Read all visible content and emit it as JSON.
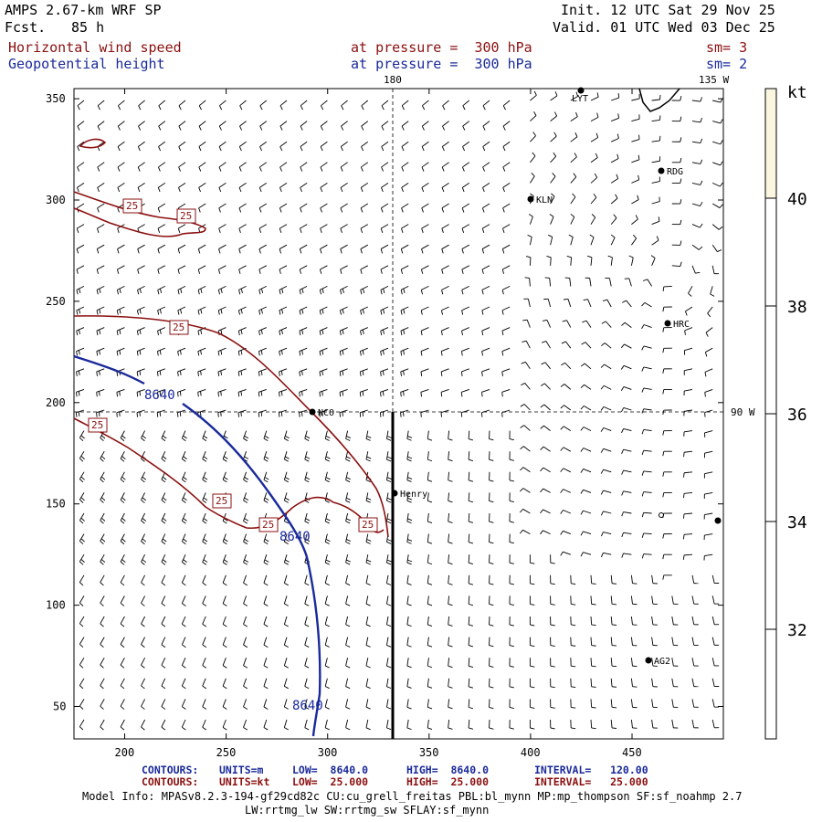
{
  "header": {
    "model": "AMPS 2.67-km WRF SP",
    "fcst_label": "Fcst.",
    "fcst_value": "85 h",
    "init": "Init. 12 UTC Sat 29 Nov 25",
    "valid": "Valid. 01 UTC Wed 03 Dec 25",
    "field1_name": "Horizontal wind speed",
    "field1_level": "at pressure =  300 hPa",
    "field1_sm": "sm= 3",
    "field2_name": "Geopotential height",
    "field2_level": "at pressure =  300 hPa",
    "field2_sm": "sm= 2"
  },
  "map": {
    "x_ticks": [
      "200",
      "250",
      "300",
      "350",
      "400",
      "450"
    ],
    "y_ticks": [
      "350",
      "300",
      "250",
      "200",
      "150",
      "100",
      "50"
    ],
    "meridian_top_labels": [
      "180",
      "135 W"
    ],
    "parallel_right_label": "90 W",
    "stations": [
      {
        "name": "LYT"
      },
      {
        "name": "RDG"
      },
      {
        "name": "KLN"
      },
      {
        "name": "HRC"
      },
      {
        "name": "NCO"
      },
      {
        "name": "Henry"
      },
      {
        "name": "AG2"
      }
    ],
    "contour_labels_height": [
      "8640",
      "8640",
      "8640"
    ],
    "contour_labels_wind": [
      "25",
      "25",
      "25",
      "25",
      "25",
      "25",
      "25"
    ],
    "colors": {
      "height_contour": "#1a2a9a",
      "wind_contour": "#8b1010",
      "barb": "#000000",
      "colorbar_fill": "#fbf6e0"
    }
  },
  "colorbar": {
    "unit": "kt",
    "ticks": [
      "40",
      "38",
      "36",
      "34",
      "32"
    ]
  },
  "footer": {
    "line1_label": "CONTOURS:",
    "line1_units": "UNITS=m",
    "line1_low": "LOW=  8640.0",
    "line1_high": "HIGH=  8640.0",
    "line1_interval": "INTERVAL=   120.00",
    "line2_label": "CONTOURS:",
    "line2_units": "UNITS=kt",
    "line2_low": "LOW=  25.000",
    "line2_high": "HIGH=  25.000",
    "line2_interval": "INTERVAL=   25.000",
    "model_info": "Model Info: MPASv8.2.3-194-gf29cd82c CU:cu_grell_freitas PBL:bl_mynn MP:mp_thompson SF:sf_noahmp 2.7",
    "model_info2": "LW:rrtmg_lw SW:rrtmg_sw SFLAY:sf_mynn"
  }
}
